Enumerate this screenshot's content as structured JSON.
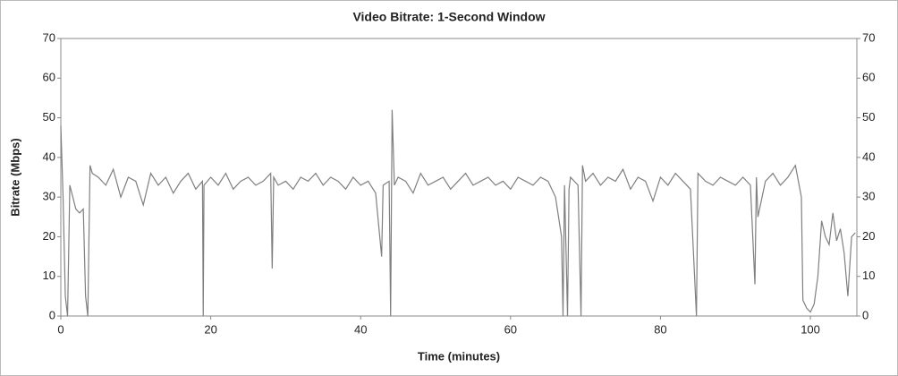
{
  "chart_data": {
    "type": "line",
    "title": "Video Bitrate: 1-Second Window",
    "x_label": "Time (minutes)",
    "y_label": "Bitrate (Mbps)",
    "xlim": [
      0,
      106.2
    ],
    "xticks": [
      0,
      20,
      40,
      60,
      80,
      100
    ],
    "ylim": [
      0,
      70
    ],
    "yticks": [
      0,
      10,
      20,
      30,
      40,
      50,
      60,
      70
    ],
    "color": "#7f7f7f",
    "x": [
      0,
      0.3,
      0.6,
      0.9,
      1.2,
      1.6,
      2,
      2.5,
      3,
      3.3,
      3.6,
      3.9,
      4.2,
      5,
      6,
      7,
      8,
      9,
      10,
      11,
      12,
      13,
      14,
      15,
      16,
      17,
      18,
      18.9,
      19,
      19.1,
      20,
      21,
      22,
      23,
      24,
      25,
      26,
      27,
      28,
      28.2,
      28.4,
      29,
      30,
      31,
      32,
      33,
      34,
      35,
      36,
      37,
      38,
      39,
      40,
      41,
      42,
      42.8,
      43,
      43.8,
      44,
      44.2,
      44.5,
      45,
      46,
      47,
      48,
      49,
      50,
      51,
      52,
      53,
      54,
      55,
      56,
      57,
      58,
      59,
      60,
      61,
      62,
      63,
      64,
      65,
      66,
      66.8,
      67,
      67.2,
      67.6,
      67.8,
      68,
      69,
      69.4,
      69.6,
      70,
      71,
      72,
      73,
      74,
      75,
      76,
      77,
      78,
      79,
      80,
      81,
      82,
      83,
      84,
      84.8,
      85,
      86,
      87,
      88,
      89,
      90,
      91,
      92,
      92.6,
      92.8,
      93,
      94,
      95,
      96,
      97,
      98,
      98.8,
      99,
      99.5,
      100,
      100.5,
      101,
      101.5,
      102,
      102.5,
      103,
      103.5,
      104,
      104.5,
      105,
      105.5,
      106
    ],
    "values": [
      48,
      30,
      5,
      0,
      33,
      30,
      27,
      26,
      27,
      5,
      0,
      38,
      36,
      35,
      33,
      37,
      30,
      35,
      34,
      28,
      36,
      33,
      35,
      31,
      34,
      36,
      32,
      34,
      0,
      33,
      35,
      33,
      36,
      32,
      34,
      35,
      33,
      34,
      36,
      12,
      35,
      33,
      34,
      32,
      35,
      34,
      36,
      33,
      35,
      34,
      32,
      35,
      33,
      34,
      31,
      15,
      33,
      34,
      0,
      52,
      33,
      35,
      34,
      31,
      36,
      33,
      34,
      35,
      32,
      34,
      36,
      33,
      34,
      35,
      33,
      34,
      32,
      35,
      34,
      33,
      35,
      34,
      30,
      20,
      0,
      33,
      0,
      32,
      35,
      33,
      0,
      38,
      34,
      36,
      33,
      35,
      34,
      37,
      32,
      35,
      34,
      29,
      35,
      33,
      36,
      34,
      32,
      0,
      36,
      34,
      33,
      35,
      34,
      33,
      35,
      33,
      8,
      35,
      25,
      34,
      36,
      33,
      35,
      38,
      30,
      4,
      2,
      1,
      3,
      10,
      24,
      20,
      18,
      26,
      19,
      22,
      16,
      5,
      20,
      21
    ]
  }
}
